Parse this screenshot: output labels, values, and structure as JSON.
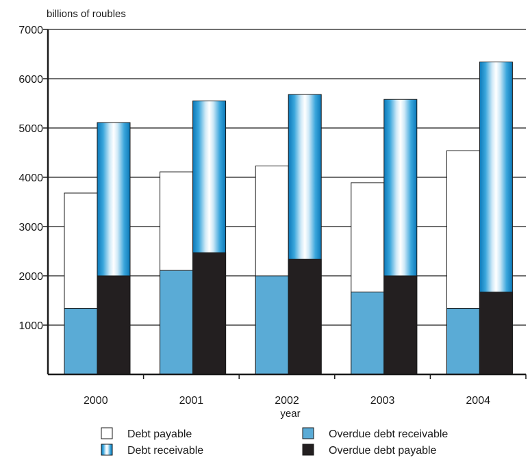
{
  "chart_data": {
    "type": "bar",
    "ylabel": "billions of roubles",
    "xlabel": "year",
    "categories": [
      "2000",
      "2001",
      "2002",
      "2003",
      "2004"
    ],
    "ylim": [
      0,
      7000
    ],
    "yticks": [
      1000,
      2000,
      3000,
      4000,
      5000,
      6000,
      7000
    ],
    "series": [
      {
        "name": "Debt payable",
        "values": [
          3680,
          4110,
          4230,
          3890,
          4540
        ],
        "color": "#ffffff"
      },
      {
        "name": "Debt receivable",
        "values": [
          5110,
          5550,
          5680,
          5580,
          6340
        ],
        "color": "#1a90c8"
      },
      {
        "name": "Overdue debt receivable",
        "values": [
          1340,
          2110,
          2000,
          1670,
          1340
        ],
        "color": "#5aabd6"
      },
      {
        "name": "Overdue debt payable",
        "values": [
          2000,
          2470,
          2340,
          2000,
          1670
        ],
        "color": "#231f20"
      }
    ],
    "grid": "horizontal",
    "legend": "bottom"
  }
}
